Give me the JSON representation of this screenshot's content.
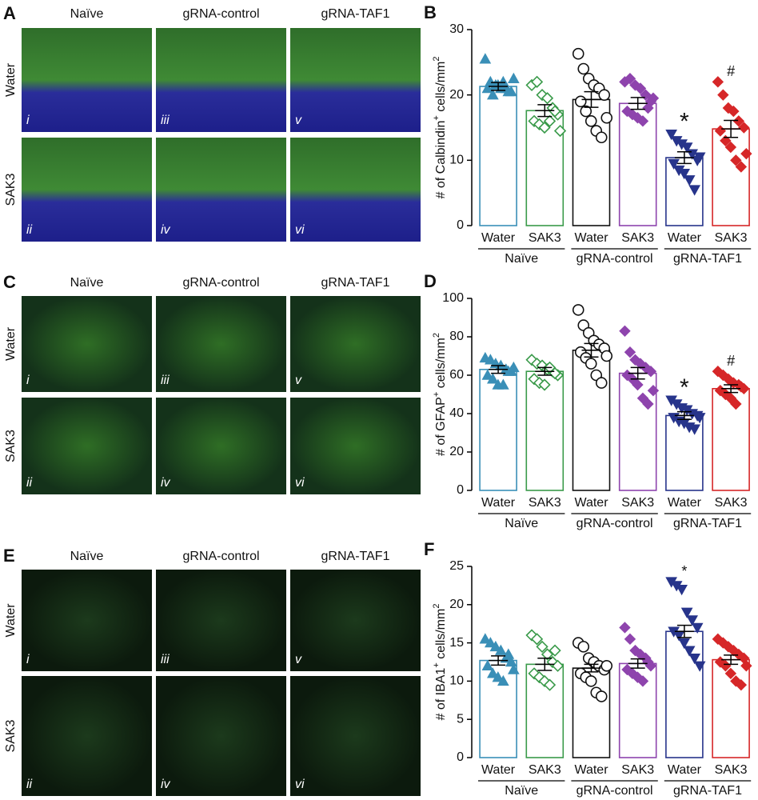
{
  "image_panels": [
    {
      "letter": "A",
      "columns": [
        "Naïve",
        "gRNA-control",
        "gRNA-TAF1"
      ],
      "rows": [
        "Water",
        "SAK3"
      ],
      "numerals": [
        "i",
        "iii",
        "v",
        "ii",
        "iv",
        "vi"
      ]
    },
    {
      "letter": "C",
      "columns": [
        "Naïve",
        "gRNA-control",
        "gRNA-TAF1"
      ],
      "rows": [
        "Water",
        "SAK3"
      ],
      "numerals": [
        "i",
        "iii",
        "v",
        "ii",
        "iv",
        "vi"
      ]
    },
    {
      "letter": "E",
      "columns": [
        "Naïve",
        "gRNA-control",
        "gRNA-TAF1"
      ],
      "rows": [
        "Water",
        "SAK3"
      ],
      "numerals": [
        "i",
        "iii",
        "v",
        "ii",
        "iv",
        "vi"
      ]
    }
  ],
  "chart_data": [
    {
      "type": "bar",
      "panel_label": "B",
      "ylabel": [
        "# of Calbindin",
        "+",
        " cells/mm",
        "2"
      ],
      "categories": [
        "Water",
        "SAK3",
        "Water",
        "SAK3",
        "Water",
        "SAK3"
      ],
      "groups": [
        "Naïve",
        "gRNA-control",
        "gRNA-TAF1"
      ],
      "colors": [
        "#3a8fb7",
        "#3a9a4a",
        "#111111",
        "#8e44ad",
        "#27348b",
        "#d62728"
      ],
      "markers": [
        "triangle",
        "diamond-open",
        "circle-open",
        "diamond",
        "triangle-down",
        "diamond"
      ],
      "values": [
        21.3,
        17.6,
        19.3,
        18.7,
        10.4,
        14.8
      ],
      "errors": [
        0.6,
        0.9,
        1.2,
        0.9,
        0.9,
        1.3
      ],
      "points": [
        [
          25.5,
          22,
          21.5,
          21,
          21,
          20.5,
          21,
          20,
          21.5,
          22,
          20.5,
          22.5
        ],
        [
          21.5,
          22,
          20,
          19.5,
          18,
          17,
          16,
          15.5,
          15,
          16,
          17.5,
          14.5
        ],
        [
          26.3,
          24,
          22.5,
          21.5,
          21,
          20,
          19,
          17.5,
          16,
          14.5,
          13.5,
          16.5
        ],
        [
          22,
          22.5,
          21.5,
          21,
          20,
          19,
          17.5,
          17,
          16.5,
          16,
          18,
          19.5
        ],
        [
          14,
          13,
          12.5,
          12,
          11,
          10,
          9.5,
          8.5,
          8,
          7,
          5.5,
          10.5
        ],
        [
          22,
          20,
          18,
          17.5,
          16,
          15,
          14.5,
          13,
          12,
          10,
          9,
          11
        ]
      ],
      "annotations": [
        {
          "index": 4,
          "text": "*"
        },
        {
          "index": 5,
          "text": "#"
        }
      ],
      "ylim": [
        0,
        30
      ],
      "yticks": [
        0,
        10,
        20,
        30
      ]
    },
    {
      "type": "bar",
      "panel_label": "D",
      "ylabel": [
        "# of GFAP",
        "+",
        " cells/mm",
        "2"
      ],
      "categories": [
        "Water",
        "SAK3",
        "Water",
        "SAK3",
        "Water",
        "SAK3"
      ],
      "groups": [
        "Naïve",
        "gRNA-control",
        "gRNA-TAF1"
      ],
      "colors": [
        "#3a8fb7",
        "#3a9a4a",
        "#111111",
        "#8e44ad",
        "#27348b",
        "#d62728"
      ],
      "markers": [
        "triangle",
        "diamond-open",
        "circle-open",
        "diamond",
        "triangle-down",
        "diamond"
      ],
      "values": [
        63,
        62,
        73,
        61,
        39,
        53
      ],
      "errors": [
        2,
        2,
        3.5,
        3,
        2,
        2
      ],
      "points": [
        [
          69,
          68,
          66,
          65,
          63,
          62,
          60,
          58,
          55,
          55,
          62,
          64
        ],
        [
          68,
          66,
          65,
          63,
          62,
          60,
          58,
          56,
          55,
          64,
          61
        ],
        [
          94,
          86,
          82,
          78,
          76,
          74,
          72,
          69,
          66,
          60,
          56,
          70
        ],
        [
          83,
          72,
          68,
          66,
          64,
          62,
          60,
          58,
          55,
          48,
          45,
          52
        ],
        [
          47,
          45,
          43,
          42,
          40,
          39,
          38,
          36,
          35,
          33,
          32,
          38
        ],
        [
          62,
          60,
          58,
          56,
          55,
          53,
          52,
          50,
          48,
          45,
          54
        ]
      ],
      "annotations": [
        {
          "index": 4,
          "text": "*"
        },
        {
          "index": 5,
          "text": "#"
        }
      ],
      "ylim": [
        0,
        100
      ],
      "yticks": [
        0,
        20,
        40,
        60,
        80,
        100
      ]
    },
    {
      "type": "bar",
      "panel_label": "F",
      "ylabel": [
        "# of IBA1",
        "+",
        " cells/mm",
        "2"
      ],
      "categories": [
        "Water",
        "SAK3",
        "Water",
        "SAK3",
        "Water",
        "SAK3"
      ],
      "groups": [
        "Naïve",
        "gRNA-control",
        "gRNA-TAF1"
      ],
      "colors": [
        "#3a8fb7",
        "#3a9a4a",
        "#111111",
        "#8e44ad",
        "#27348b",
        "#d62728"
      ],
      "markers": [
        "triangle",
        "diamond-open",
        "circle-open",
        "diamond",
        "triangle-down",
        "diamond"
      ],
      "values": [
        12.7,
        12.2,
        11.7,
        12.3,
        16.5,
        12.8
      ],
      "errors": [
        0.6,
        0.8,
        0.5,
        0.6,
        0.8,
        0.6
      ],
      "points": [
        [
          15.5,
          15,
          14.5,
          14,
          13,
          12.5,
          12,
          11,
          10.5,
          10,
          13.5,
          11.5
        ],
        [
          16,
          15.5,
          14.5,
          13.5,
          12.5,
          12,
          11,
          10.5,
          10,
          9.5,
          14
        ],
        [
          15,
          14.5,
          13,
          12.5,
          12,
          11.5,
          11,
          10.5,
          10,
          8.5,
          8,
          12
        ],
        [
          17,
          15.5,
          14,
          13.5,
          13,
          12,
          11.5,
          11,
          10.5,
          10,
          12.5
        ],
        [
          23,
          22.5,
          22,
          19,
          18,
          17,
          16.5,
          16,
          15,
          14,
          13,
          12
        ],
        [
          15.5,
          15,
          14.5,
          14,
          13.5,
          13,
          12.5,
          12,
          11,
          10,
          9.5,
          12
        ]
      ],
      "annotations": [
        {
          "index": 4,
          "text": "*"
        }
      ],
      "ylim": [
        0,
        25
      ],
      "yticks": [
        0,
        5,
        10,
        15,
        20,
        25
      ]
    }
  ]
}
